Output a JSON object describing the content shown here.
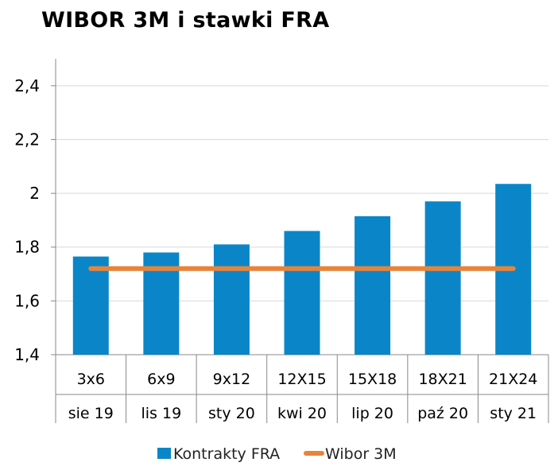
{
  "chart_data": {
    "type": "bar",
    "title": "WIBOR 3M i stawki FRA",
    "categories": [
      "3x6",
      "6x9",
      "9x12",
      "12X15",
      "15X18",
      "18X21",
      "21X24"
    ],
    "subcategories": [
      "sie 19",
      "lis 19",
      "sty 20",
      "kwi 20",
      "lip 20",
      "paź 20",
      "sty 21"
    ],
    "series": [
      {
        "name": "Kontrakty FRA",
        "type": "bar",
        "color": "#0a86c8",
        "values": [
          1.765,
          1.78,
          1.81,
          1.86,
          1.915,
          1.97,
          2.035
        ]
      },
      {
        "name": "Wibor 3M",
        "type": "line",
        "color": "#e8843a",
        "values": [
          1.72,
          1.72,
          1.72,
          1.72,
          1.72,
          1.72,
          1.72
        ]
      }
    ],
    "y_ticks": [
      "1,4",
      "1,6",
      "1,8",
      "2",
      "2,2",
      "2,4"
    ],
    "ylim": [
      1.4,
      2.5
    ],
    "grid": true,
    "legend": "bottom"
  }
}
